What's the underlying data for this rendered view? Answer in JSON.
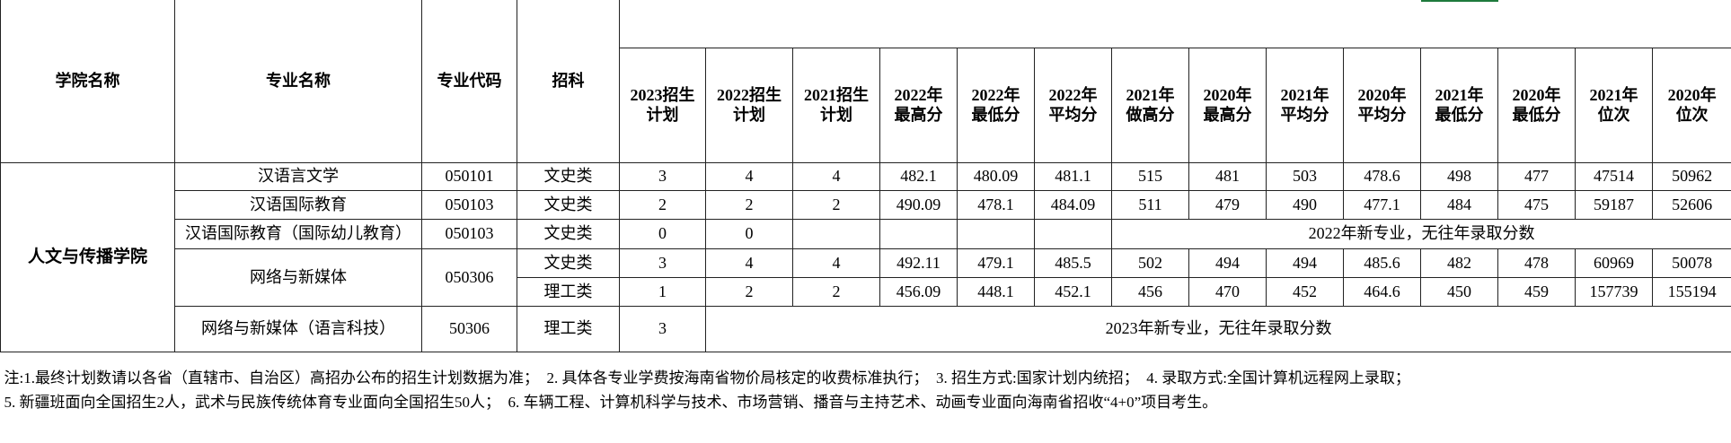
{
  "table": {
    "header": [
      "学院名称",
      "专业名称",
      "专业代码",
      "招科",
      [
        "2023招生",
        "计划"
      ],
      [
        "2022招生",
        "计划"
      ],
      [
        "2021招生",
        "计划"
      ],
      [
        "2022年",
        "最高分"
      ],
      [
        "2022年",
        "最低分"
      ],
      [
        "2022年",
        "平均分"
      ],
      [
        "2021年",
        "做高分"
      ],
      [
        "2020年",
        "最高分"
      ],
      [
        "2021年",
        "平均分"
      ],
      [
        "2020年",
        "平均分"
      ],
      [
        "2021年",
        "最低分"
      ],
      [
        "2020年",
        "最低分"
      ],
      [
        "2021年",
        "位次"
      ],
      [
        "2020年",
        "位次"
      ]
    ],
    "college": "人文与传播学院",
    "rows": [
      {
        "major": "汉语言文学",
        "code": "050101",
        "tracks": [
          {
            "subject": "文史类",
            "values": [
              3,
              4,
              4,
              482.1,
              480.09,
              481.1,
              515,
              481,
              503,
              478.6,
              498,
              477,
              47514,
              50962
            ]
          }
        ]
      },
      {
        "major": "汉语国际教育",
        "code": "050103",
        "tracks": [
          {
            "subject": "文史类",
            "values": [
              2,
              2,
              2,
              490.09,
              478.1,
              484.09,
              511,
              479,
              490,
              477.1,
              484,
              475,
              59187,
              52606
            ]
          }
        ]
      },
      {
        "major": "汉语国际教育（国际幼儿教育）",
        "code": "050103",
        "tracks": [
          {
            "subject": "文史类",
            "values": [
              0,
              0
            ],
            "note": "2022年新专业，无往年录取分数"
          }
        ]
      },
      {
        "major": "网络与新媒体",
        "code": "050306",
        "tracks": [
          {
            "subject": "文史类",
            "values": [
              3,
              4,
              4,
              492.11,
              479.1,
              485.5,
              502,
              494,
              494,
              485.6,
              482,
              478,
              60969,
              50078
            ]
          },
          {
            "subject": "理工类",
            "values": [
              1,
              2,
              2,
              456.09,
              448.1,
              452.1,
              456,
              470,
              452,
              464.6,
              450,
              459,
              157739,
              155194
            ]
          }
        ]
      },
      {
        "major": "网络与新媒体（语言科技）",
        "code": "50306",
        "tracks": [
          {
            "subject": "理工类",
            "values": [
              3
            ],
            "note": "2023年新专业，无往年录取分数"
          }
        ]
      }
    ]
  },
  "notes": [
    "注:1.最终计划数请以各省（直辖市、自治区）高招办公布的招生计划数据为准；  2. 具体各专业学费按海南省物价局核定的收费标准执行；  3. 招生方式:国家计划内统招；  4. 录取方式:全国计算机远程网上录取；",
    "5. 新疆班面向全国招生2人，武术与民族传统体育专业面向全国招生50人；  6. 车辆工程、计算机科学与技术、市场营销、播音与主持艺术、动画专业面向海南省招收“4+0”项目考生。"
  ]
}
